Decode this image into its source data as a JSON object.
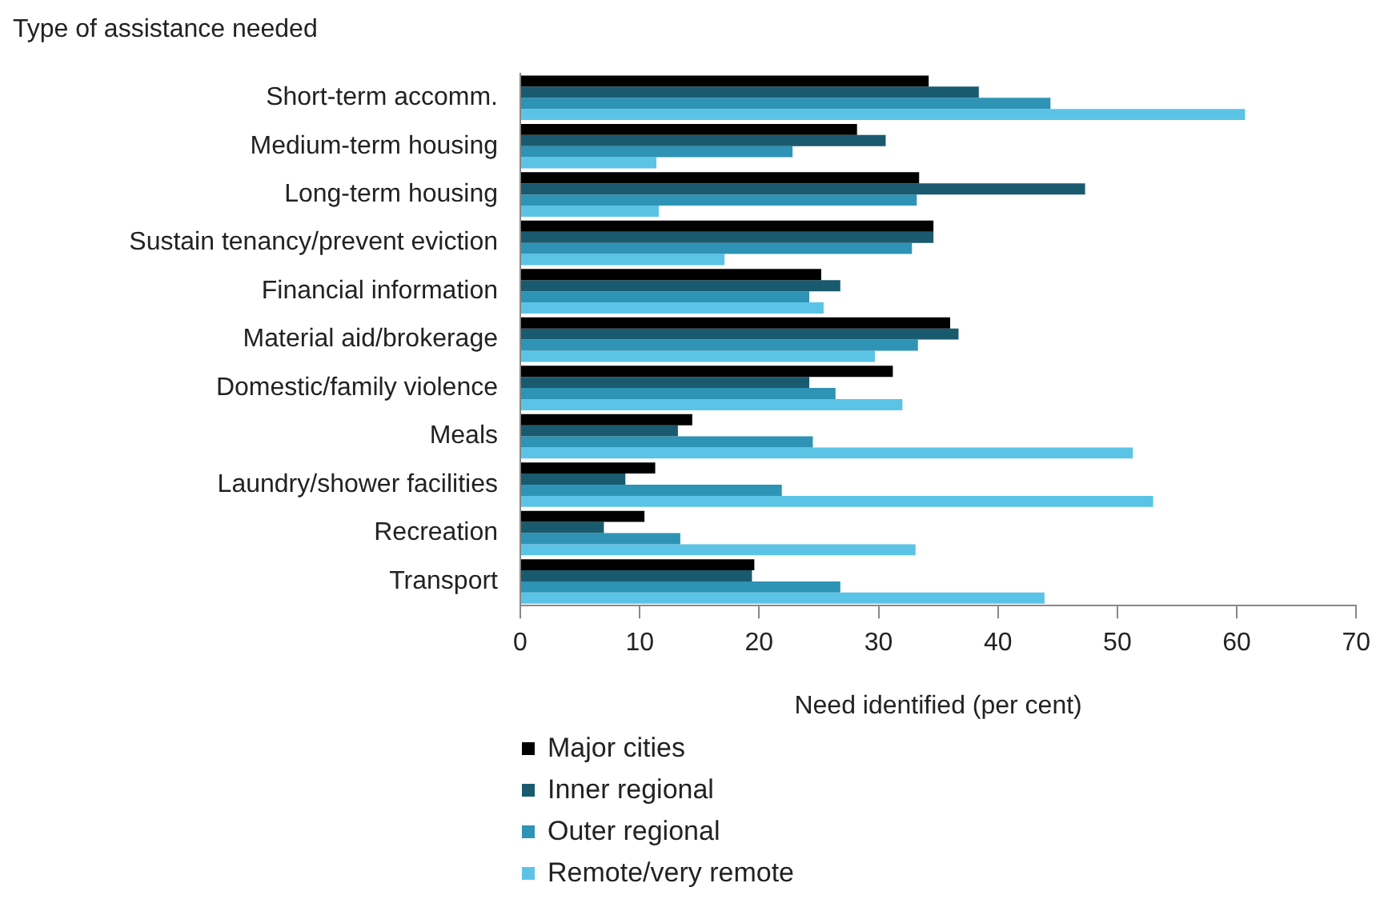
{
  "chart_data": {
    "type": "bar",
    "orientation": "horizontal",
    "ylabel": "Type of assistance needed",
    "xlabel": "Need identified (per cent)",
    "categories": [
      "Short-term accomm.",
      "Medium-term housing",
      "Long-term housing",
      "Sustain tenancy/prevent eviction",
      "Financial information",
      "Material aid/brokerage",
      "Domestic/family violence",
      "Meals",
      "Laundry/shower facilities",
      "Recreation",
      "Transport"
    ],
    "series": [
      {
        "name": "Major cities",
        "color": "#000000",
        "values": [
          34.2,
          28.2,
          33.4,
          34.6,
          25.2,
          36.0,
          31.2,
          14.4,
          11.3,
          10.4,
          19.6
        ]
      },
      {
        "name": "Inner regional",
        "color": "#1a5a6e",
        "values": [
          38.4,
          30.6,
          47.3,
          34.6,
          26.8,
          36.7,
          24.2,
          13.2,
          8.8,
          7.0,
          19.4
        ]
      },
      {
        "name": "Outer regional",
        "color": "#2e93b5",
        "values": [
          44.4,
          22.8,
          33.2,
          32.8,
          24.2,
          33.3,
          26.4,
          24.5,
          21.9,
          13.4,
          26.8
        ]
      },
      {
        "name": "Remote/very remote",
        "color": "#5bc4e6",
        "values": [
          60.7,
          11.4,
          11.6,
          17.1,
          25.4,
          29.7,
          32.0,
          51.3,
          53.0,
          33.1,
          43.9
        ]
      }
    ],
    "xlim": [
      0,
      70
    ],
    "xticks": [
      0,
      10,
      20,
      30,
      40,
      50,
      60,
      70
    ],
    "grid": false,
    "legend": "bottom"
  }
}
